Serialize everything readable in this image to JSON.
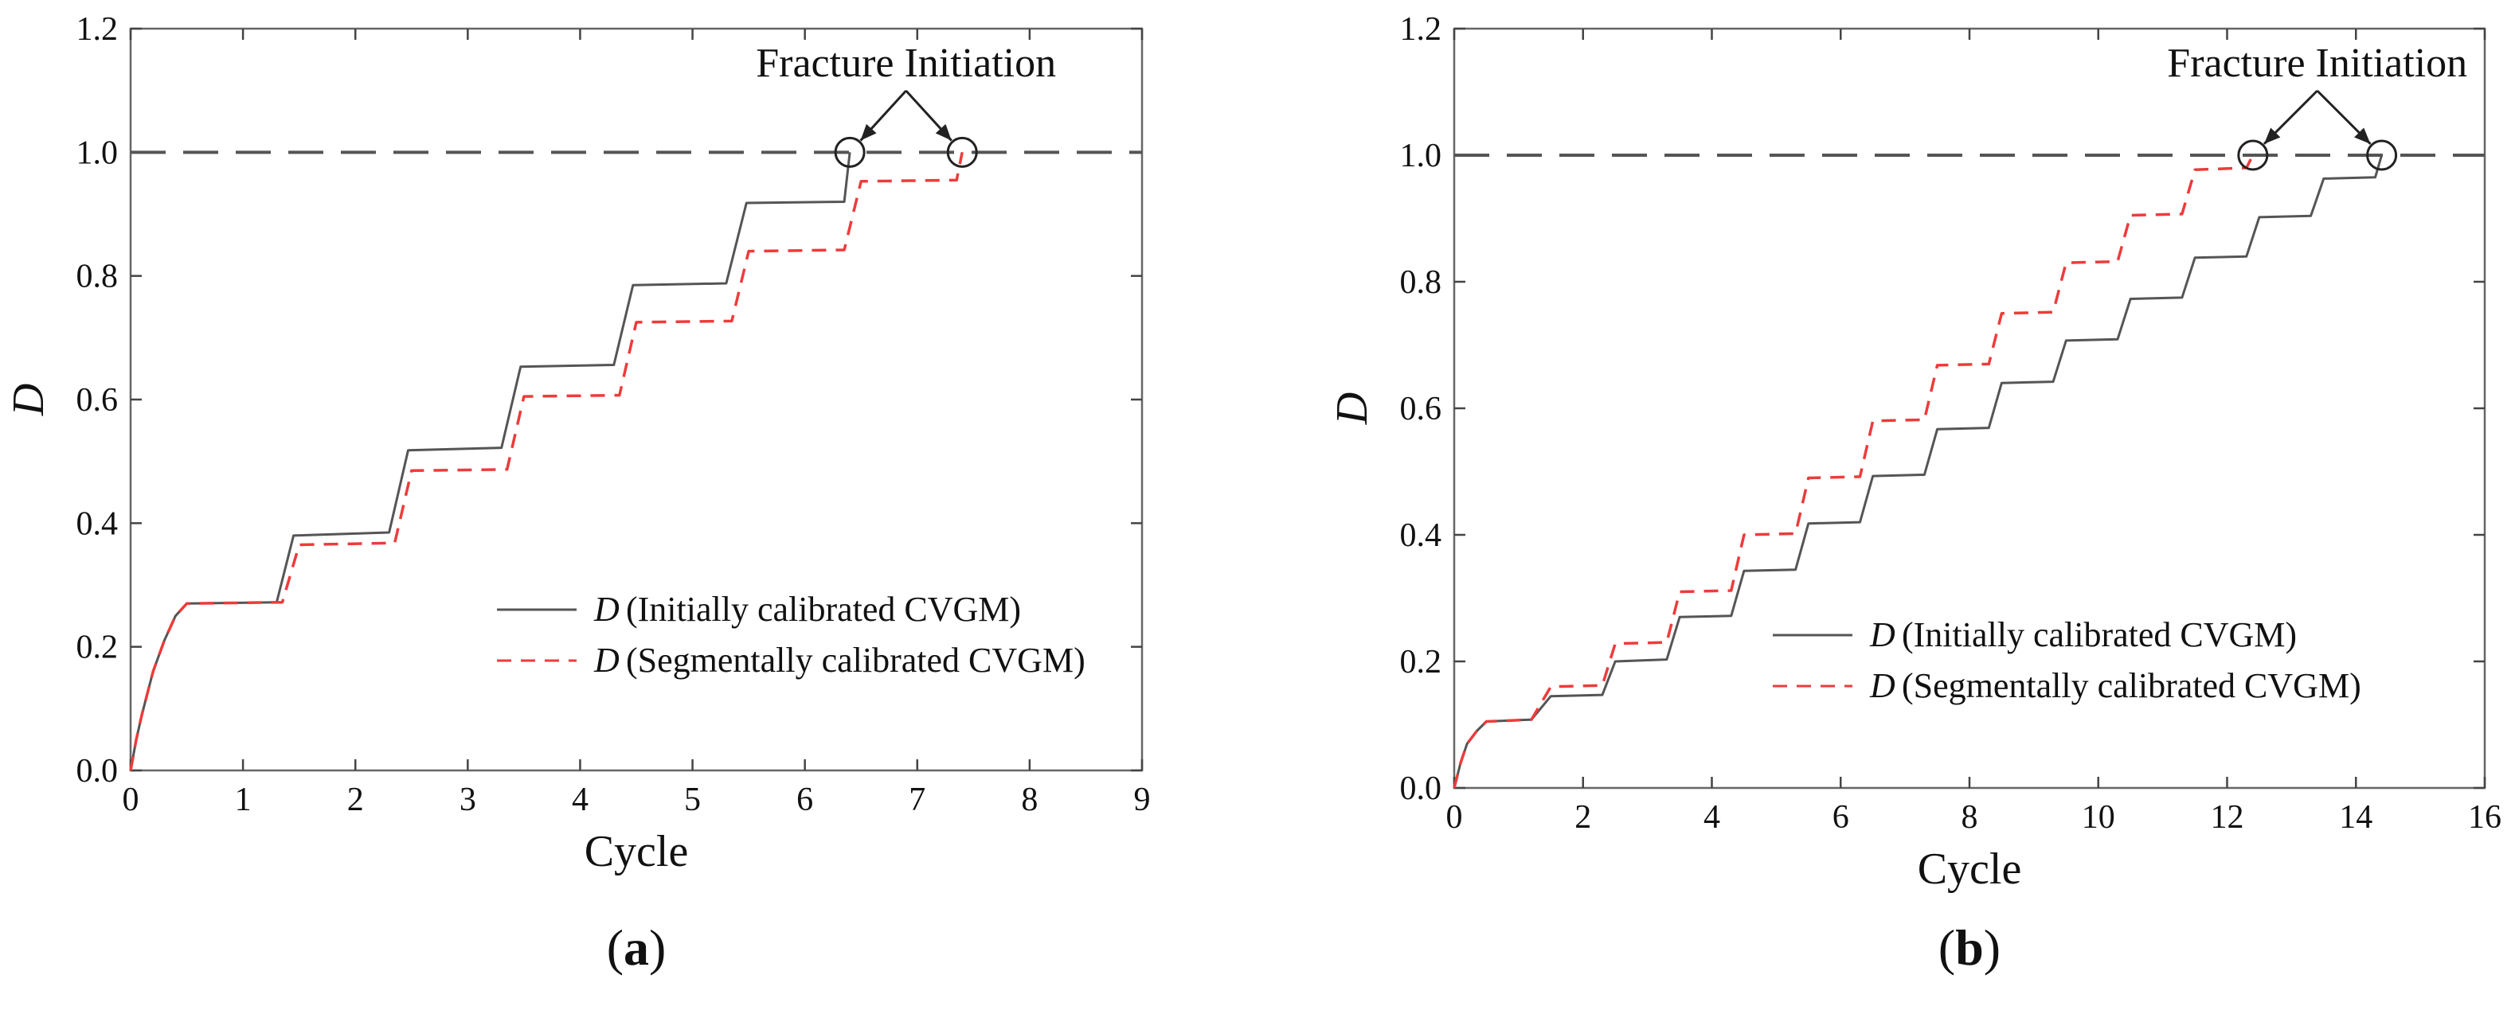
{
  "chart_data": [
    {
      "type": "line",
      "panel_label": "(a)",
      "xlabel": "Cycle",
      "ylabel": "D",
      "xlim": [
        0,
        9
      ],
      "ylim": [
        0,
        1.2
      ],
      "xticks": [
        "0",
        "1",
        "2",
        "3",
        "4",
        "5",
        "6",
        "7",
        "8",
        "9"
      ],
      "yticks": [
        "0.0",
        "0.2",
        "0.4",
        "0.6",
        "0.8",
        "1.0",
        "1.2"
      ],
      "reference_line": {
        "y": 1.0,
        "style": "dashed"
      },
      "annotation": {
        "text": "Fracture Initiation",
        "targets": [
          [
            6.4,
            1.0
          ],
          [
            7.4,
            1.0
          ]
        ]
      },
      "legend": {
        "position": "lower-right"
      },
      "series": [
        {
          "name": "D",
          "label": "(Initially calibrated CVGM)",
          "style": "solid",
          "color": "#555555",
          "points": [
            [
              0,
              0
            ],
            [
              0.05,
              0.05
            ],
            [
              0.1,
              0.09
            ],
            [
              0.2,
              0.16
            ],
            [
              0.3,
              0.21
            ],
            [
              0.4,
              0.25
            ],
            [
              0.5,
              0.27
            ],
            [
              1.3,
              0.272
            ],
            [
              1.45,
              0.38
            ],
            [
              2.3,
              0.385
            ],
            [
              2.47,
              0.518
            ],
            [
              3.3,
              0.522
            ],
            [
              3.47,
              0.653
            ],
            [
              4.3,
              0.656
            ],
            [
              4.47,
              0.785
            ],
            [
              5.3,
              0.788
            ],
            [
              5.48,
              0.918
            ],
            [
              6.35,
              0.92
            ],
            [
              6.4,
              1.0
            ]
          ]
        },
        {
          "name": "D",
          "label": "(Segmentally calibrated CVGM)",
          "style": "dashed",
          "color": "#ee3b3b",
          "points": [
            [
              0,
              0
            ],
            [
              0.05,
              0.05
            ],
            [
              0.1,
              0.09
            ],
            [
              0.2,
              0.16
            ],
            [
              0.3,
              0.21
            ],
            [
              0.4,
              0.25
            ],
            [
              0.5,
              0.27
            ],
            [
              1.35,
              0.272
            ],
            [
              1.5,
              0.365
            ],
            [
              2.35,
              0.368
            ],
            [
              2.5,
              0.485
            ],
            [
              3.35,
              0.487
            ],
            [
              3.5,
              0.605
            ],
            [
              4.35,
              0.607
            ],
            [
              4.5,
              0.725
            ],
            [
              5.35,
              0.727
            ],
            [
              5.5,
              0.84
            ],
            [
              6.35,
              0.842
            ],
            [
              6.5,
              0.953
            ],
            [
              7.35,
              0.955
            ],
            [
              7.4,
              1.0
            ]
          ]
        }
      ]
    },
    {
      "type": "line",
      "panel_label": "(b)",
      "xlabel": "Cycle",
      "ylabel": "D",
      "xlim": [
        0,
        16
      ],
      "ylim": [
        0,
        1.2
      ],
      "xticks": [
        "0",
        "2",
        "4",
        "6",
        "8",
        "10",
        "12",
        "14",
        "16"
      ],
      "yticks": [
        "0.0",
        "0.2",
        "0.4",
        "0.6",
        "0.8",
        "1.0",
        "1.2"
      ],
      "reference_line": {
        "y": 1.0,
        "style": "dashed"
      },
      "annotation": {
        "text": "Fracture Initiation",
        "targets": [
          [
            12.4,
            1.0
          ],
          [
            14.4,
            1.0
          ]
        ]
      },
      "legend": {
        "position": "lower-right"
      },
      "series": [
        {
          "name": "D",
          "label": "(Initially calibrated CVGM)",
          "style": "solid",
          "color": "#555555",
          "points": [
            [
              0,
              0
            ],
            [
              0.1,
              0.04
            ],
            [
              0.2,
              0.07
            ],
            [
              0.35,
              0.09
            ],
            [
              0.5,
              0.105
            ],
            [
              1.2,
              0.108
            ],
            [
              1.5,
              0.145
            ],
            [
              2.3,
              0.147
            ],
            [
              2.5,
              0.2
            ],
            [
              3.3,
              0.203
            ],
            [
              3.5,
              0.27
            ],
            [
              4.3,
              0.272
            ],
            [
              4.5,
              0.343
            ],
            [
              5.3,
              0.345
            ],
            [
              5.5,
              0.418
            ],
            [
              6.3,
              0.42
            ],
            [
              6.5,
              0.493
            ],
            [
              7.3,
              0.495
            ],
            [
              7.5,
              0.567
            ],
            [
              8.3,
              0.569
            ],
            [
              8.5,
              0.64
            ],
            [
              9.3,
              0.642
            ],
            [
              9.5,
              0.707
            ],
            [
              10.3,
              0.709
            ],
            [
              10.5,
              0.773
            ],
            [
              11.3,
              0.775
            ],
            [
              11.5,
              0.838
            ],
            [
              12.3,
              0.84
            ],
            [
              12.5,
              0.902
            ],
            [
              13.3,
              0.904
            ],
            [
              13.5,
              0.963
            ],
            [
              14.3,
              0.965
            ],
            [
              14.4,
              1.0
            ]
          ]
        },
        {
          "name": "D",
          "label": "(Segmentally calibrated CVGM)",
          "style": "dashed",
          "color": "#ee3b3b",
          "points": [
            [
              0,
              0
            ],
            [
              0.1,
              0.04
            ],
            [
              0.2,
              0.07
            ],
            [
              0.35,
              0.09
            ],
            [
              0.5,
              0.105
            ],
            [
              1.2,
              0.108
            ],
            [
              1.5,
              0.16
            ],
            [
              2.3,
              0.162
            ],
            [
              2.5,
              0.228
            ],
            [
              3.3,
              0.23
            ],
            [
              3.5,
              0.31
            ],
            [
              4.3,
              0.312
            ],
            [
              4.5,
              0.4
            ],
            [
              5.3,
              0.402
            ],
            [
              5.5,
              0.49
            ],
            [
              6.3,
              0.492
            ],
            [
              6.5,
              0.58
            ],
            [
              7.3,
              0.582
            ],
            [
              7.5,
              0.668
            ],
            [
              8.3,
              0.67
            ],
            [
              8.5,
              0.75
            ],
            [
              9.3,
              0.752
            ],
            [
              9.5,
              0.83
            ],
            [
              10.3,
              0.832
            ],
            [
              10.5,
              0.905
            ],
            [
              11.3,
              0.907
            ],
            [
              11.5,
              0.977
            ],
            [
              12.3,
              0.98
            ],
            [
              12.4,
              1.0
            ]
          ]
        }
      ]
    }
  ]
}
